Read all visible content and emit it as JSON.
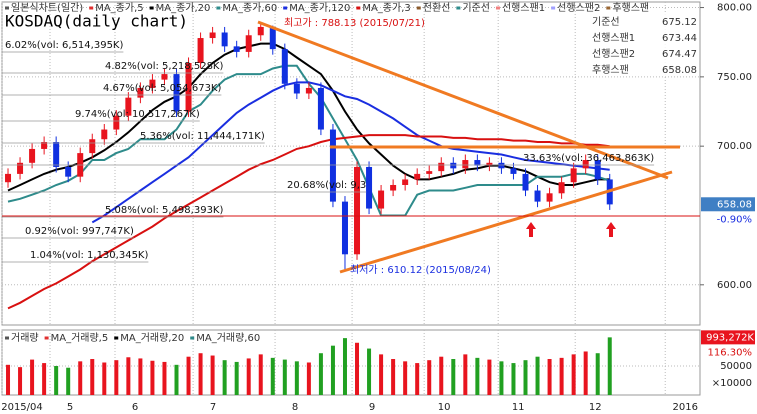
{
  "chart_data": {
    "type": "candlestick",
    "title": "KOSDAQ(daily chart)",
    "ohlc": [
      [
        674,
        684,
        670,
        680
      ],
      [
        680,
        692,
        676,
        688
      ],
      [
        688,
        702,
        684,
        698
      ],
      [
        698,
        707,
        694,
        703
      ],
      [
        703,
        707,
        681,
        685
      ],
      [
        685,
        689,
        674,
        678
      ],
      [
        678,
        699,
        674,
        695
      ],
      [
        695,
        709,
        691,
        705
      ],
      [
        705,
        716,
        701,
        712
      ],
      [
        712,
        726,
        708,
        722
      ],
      [
        722,
        739,
        718,
        735
      ],
      [
        735,
        746,
        731,
        742
      ],
      [
        742,
        752,
        738,
        748
      ],
      [
        748,
        756,
        744,
        752
      ],
      [
        752,
        756,
        721,
        725
      ],
      [
        725,
        764,
        721,
        760
      ],
      [
        760,
        782,
        756,
        778
      ],
      [
        778,
        786,
        774,
        782
      ],
      [
        782,
        786,
        768,
        772
      ],
      [
        772,
        776,
        764,
        768
      ],
      [
        768,
        784,
        764,
        780
      ],
      [
        780,
        788.13,
        776,
        786
      ],
      [
        786,
        787,
        766,
        770
      ],
      [
        770,
        774,
        741,
        745
      ],
      [
        745,
        749,
        734,
        738
      ],
      [
        738,
        746,
        734,
        742
      ],
      [
        742,
        746,
        708,
        712
      ],
      [
        712,
        716,
        656,
        660
      ],
      [
        660,
        664,
        610.12,
        622
      ],
      [
        622,
        689,
        618,
        685
      ],
      [
        685,
        689,
        651,
        655
      ],
      [
        655,
        672,
        651,
        668
      ],
      [
        668,
        676,
        664,
        672
      ],
      [
        672,
        680,
        668,
        676
      ],
      [
        676,
        684,
        672,
        680
      ],
      [
        680,
        686,
        676,
        682
      ],
      [
        682,
        692,
        678,
        688
      ],
      [
        688,
        692,
        680,
        684
      ],
      [
        684,
        694,
        680,
        690
      ],
      [
        690,
        694,
        682,
        686
      ],
      [
        686,
        692,
        682,
        688
      ],
      [
        688,
        692,
        680,
        684
      ],
      [
        684,
        688,
        676,
        680
      ],
      [
        680,
        684,
        664,
        668
      ],
      [
        668,
        672,
        656,
        660
      ],
      [
        660,
        670,
        656,
        666
      ],
      [
        666,
        678,
        662,
        674
      ],
      [
        674,
        688,
        670,
        684
      ],
      [
        684,
        694,
        680,
        690
      ],
      [
        690,
        694,
        672,
        676
      ],
      [
        676,
        680,
        654,
        658
      ]
    ],
    "up_color": "#e8141e",
    "down_color": "#1030e0",
    "series": [
      {
        "name": "일본식차트(일간)",
        "color": "#555555"
      },
      {
        "name": "MA_종가,5",
        "color": "#e03030"
      },
      {
        "name": "MA_종가,20",
        "color": "#000000",
        "values": [
          668,
          672,
          676,
          680,
          683,
          685,
          688,
          692,
          697,
          703,
          710,
          718,
          726,
          732,
          736,
          742,
          752,
          760,
          766,
          770,
          772,
          774,
          774,
          770,
          764,
          758,
          752,
          740,
          725,
          712,
          702,
          694,
          686,
          680,
          676,
          676,
          678,
          680,
          683,
          684,
          686,
          686,
          684,
          682,
          678,
          674,
          672,
          672,
          674,
          676,
          676
        ]
      },
      {
        "name": "MA_종가,60",
        "color": "#2e8b8b",
        "values": [
          660,
          662,
          665,
          668,
          672,
          675,
          680,
          690,
          690,
          695,
          698,
          705,
          705,
          705,
          712,
          725,
          730,
          740,
          748,
          752,
          752,
          752,
          756,
          758,
          758,
          745,
          735,
          720,
          705,
          690,
          670,
          650,
          650,
          650,
          665,
          668,
          668,
          668,
          670,
          672,
          672,
          672,
          672,
          672,
          678,
          678,
          678,
          680,
          680,
          678,
          675
        ]
      },
      {
        "name": "MA_종가,120",
        "color": "#1a2ee0",
        "values": [
          null,
          null,
          null,
          null,
          null,
          null,
          null,
          645,
          650,
          656,
          662,
          668,
          674,
          680,
          686,
          692,
          700,
          708,
          716,
          724,
          730,
          735,
          740,
          744,
          746,
          746,
          744,
          740,
          736,
          734,
          730,
          725,
          720,
          714,
          708,
          704,
          700,
          698,
          697,
          696,
          695,
          694,
          692,
          690,
          689,
          688,
          687,
          686,
          685,
          684,
          683
        ]
      },
      {
        "name": "MA_종가,3",
        "color": "#d81010",
        "values": [
          583,
          587,
          592,
          597,
          601,
          606,
          611,
          617,
          622,
          627,
          632,
          637,
          642,
          648,
          653,
          658,
          663,
          668,
          673,
          678,
          683,
          687,
          690,
          694,
          698,
          700,
          703,
          705,
          706,
          707,
          708,
          708,
          708,
          708,
          707,
          707,
          707,
          706,
          706,
          705,
          705,
          705,
          704,
          704,
          703,
          703,
          702,
          702,
          701,
          701,
          700
        ]
      },
      {
        "name": "전환선",
        "color": "#8b5a2b"
      },
      {
        "name": "기준선",
        "color": "#2e8b8b"
      },
      {
        "name": "선행스팬1",
        "color": "#f08080"
      },
      {
        "name": "선행스팬2",
        "color": "#a0a0ff"
      },
      {
        "name": "후행스팬",
        "color": "#996633"
      }
    ],
    "xlim": [
      -0.5,
      57.5
    ],
    "xticks": [
      {
        "value": -0.5,
        "label": "2015/04"
      },
      {
        "value": 3.49,
        "label": "5"
      },
      {
        "value": 8.89,
        "label": "6"
      },
      {
        "value": 15.38,
        "label": "7"
      },
      {
        "value": 22.19,
        "label": "8"
      },
      {
        "value": 28.59,
        "label": "9"
      },
      {
        "value": 34.58,
        "label": "10"
      },
      {
        "value": 40.73,
        "label": "11"
      },
      {
        "value": 47.13,
        "label": "12"
      },
      {
        "value": 54.61,
        "label": "2016"
      }
    ],
    "ylim": [
      571,
      804
    ],
    "yticks": [
      {
        "value": 600,
        "label": "600.00"
      },
      {
        "value": 700,
        "label": "700.00"
      },
      {
        "value": 750,
        "label": "750.00"
      },
      {
        "value": 800,
        "label": "800.00"
      }
    ],
    "grid": true,
    "current_price": {
      "value": 658.08,
      "label": "658.08"
    },
    "change": "-0.90%",
    "info": [
      {
        "label": "기준선",
        "value": 675.12
      },
      {
        "label": "선행스팬1",
        "value": 673.44
      },
      {
        "label": "선행스팬2",
        "value": 674.47
      },
      {
        "label": "후행스팬",
        "value": 658.08
      }
    ],
    "annotations": [
      {
        "text": "최고가 : 788.13 (2015/07/21)",
        "color": "#d81010"
      },
      {
        "text": "최저가 : 610.12 (2015/08/24)",
        "color": "#1a2ee0"
      },
      {
        "text": "6.02%(vol: 6,514,395K)",
        "color": "#111111"
      },
      {
        "text": "4.82%(vol: 5,218,528K)",
        "color": "#111111"
      },
      {
        "text": "4.67%(vol: 5,054,673K)",
        "color": "#111111"
      },
      {
        "text": "9.74%(vol: 10,517,267K)",
        "color": "#111111"
      },
      {
        "text": "5.36%(vol: 11,444,171K)",
        "color": "#111111"
      },
      {
        "text": "20.68%(vol: 9,3",
        "color": "#111111"
      },
      {
        "text": "33.63%(vol: 36,463,863K)",
        "color": "#111111"
      },
      {
        "text": "5.08%(vol: 5,498,393K)",
        "color": "#111111"
      },
      {
        "text": "0.92%(vol: 997,747K)",
        "color": "#111111"
      },
      {
        "text": "1.04%(vol: 1,130,345K)",
        "color": "#111111"
      }
    ],
    "volume": {
      "values": [
        52000,
        48000,
        61000,
        55000,
        50000,
        47000,
        58000,
        62000,
        56000,
        60000,
        65000,
        63000,
        59000,
        57000,
        52000,
        66000,
        72000,
        68000,
        60000,
        57000,
        63000,
        70000,
        64000,
        61000,
        58000,
        56000,
        72000,
        85000,
        98000,
        90000,
        80000,
        70000,
        62000,
        58000,
        55000,
        60000,
        66000,
        62000,
        70000,
        64000,
        61000,
        58000,
        55000,
        60000,
        66000,
        62000,
        64000,
        70000,
        75000,
        72000,
        99327.2
      ],
      "up_color": "#e8141e",
      "down_color": "#21a021",
      "ylim": [
        0,
        112000
      ],
      "yticks": [
        50000
      ],
      "unit": "×10000",
      "current_label": "993,272K",
      "change": "116.30%",
      "legend": [
        {
          "name": "거래량",
          "color": "#555555"
        },
        {
          "name": "MA_거래량,5",
          "color": "#e03030"
        },
        {
          "name": "MA_거래량,20",
          "color": "#000000"
        },
        {
          "name": "MA_거래량,60",
          "color": "#2e8b8b"
        }
      ]
    }
  }
}
